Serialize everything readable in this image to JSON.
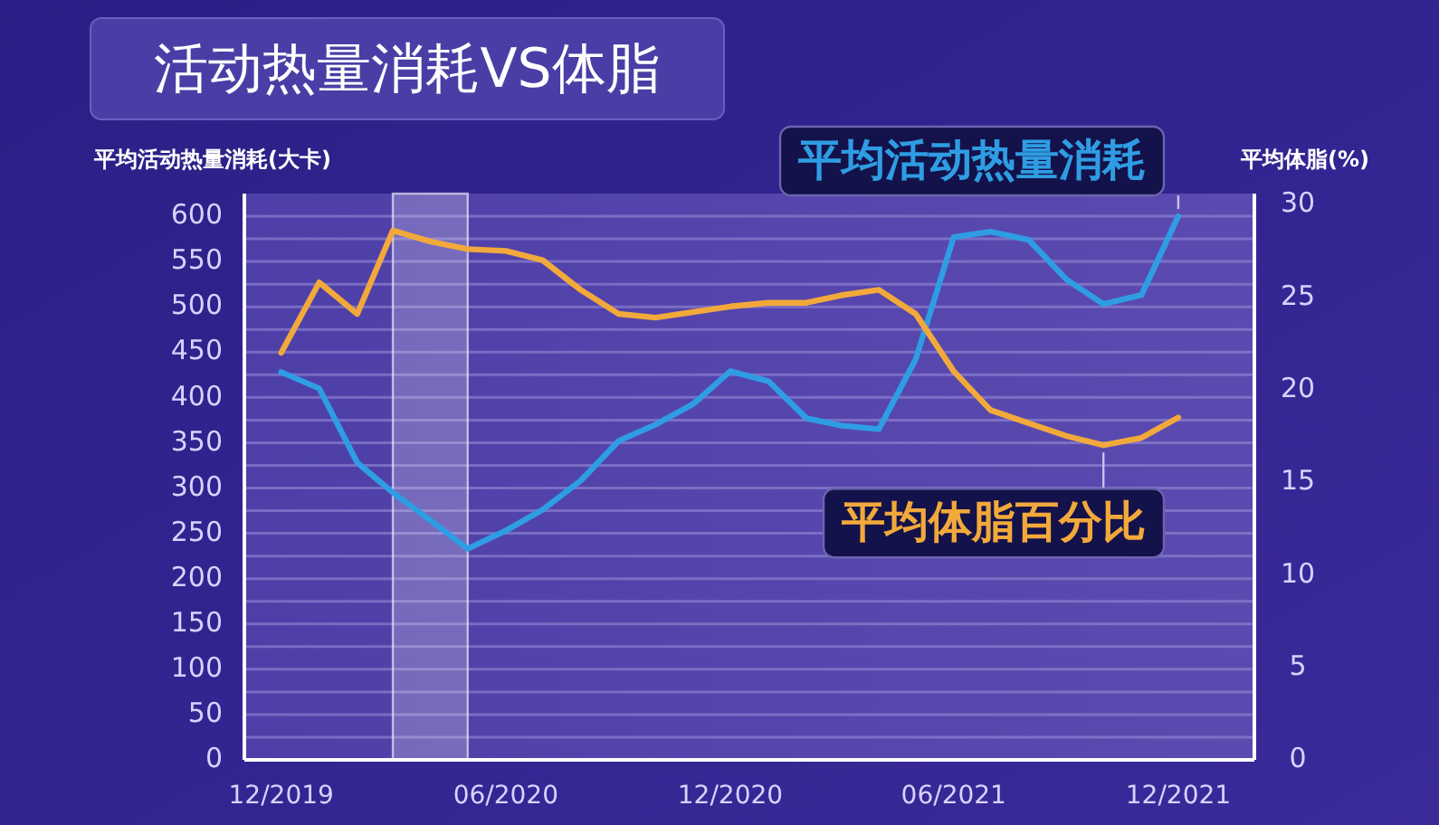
{
  "chart_data": {
    "type": "line",
    "title": "活动热量消耗VS体脂",
    "ylabel": "平均活动热量消耗(大卡)",
    "y2label": "平均体脂(%)",
    "x": [
      "2019-12",
      "2020-01",
      "2020-02",
      "2020-03",
      "2020-04",
      "2020-05",
      "2020-06",
      "2020-07",
      "2020-08",
      "2020-09",
      "2020-10",
      "2020-11",
      "2020-12",
      "2021-01",
      "2021-02",
      "2021-03",
      "2021-04",
      "2021-05",
      "2021-06",
      "2021-07",
      "2021-08",
      "2021-09",
      "2021-10",
      "2021-11",
      "2021-12"
    ],
    "series": [
      {
        "name": "平均活动热量消耗",
        "color": "#2f9de3",
        "values": [
          428,
          410,
          328,
          295,
          264,
          233,
          253,
          276,
          308,
          352,
          370,
          393,
          429,
          418,
          377,
          369,
          365,
          442,
          577,
          583,
          574,
          530,
          503,
          513,
          600
        ]
      },
      {
        "name": "平均体脂百分比",
        "color": "#f2a93b",
        "axis": "y2",
        "values": [
          22.0,
          25.8,
          24.1,
          28.6,
          28.0,
          27.6,
          27.5,
          27.0,
          25.4,
          24.1,
          23.9,
          24.2,
          24.5,
          24.7,
          24.7,
          25.1,
          25.4,
          24.1,
          21.0,
          18.9,
          18.2,
          17.5,
          17.0,
          17.4,
          18.5
        ]
      }
    ],
    "xlim": [
      "2019-11-01",
      "2022-02-01"
    ],
    "xticks": [
      {
        "value": "2019-12",
        "label": "12/2019"
      },
      {
        "value": "2020-06",
        "label": "06/2020"
      },
      {
        "value": "2020-12",
        "label": "12/2020"
      },
      {
        "value": "2021-06",
        "label": "06/2021"
      },
      {
        "value": "2021-12",
        "label": "12/2021"
      }
    ],
    "ylim": [
      0,
      625
    ],
    "yticks": [
      0,
      {
        "value": 25,
        "label": null
      },
      50,
      {
        "value": 75,
        "label": null
      },
      100,
      {
        "value": 125,
        "label": null
      },
      150,
      {
        "value": 175,
        "label": null
      },
      200,
      {
        "value": 225,
        "label": null
      },
      250,
      {
        "value": 275,
        "label": null
      },
      300,
      {
        "value": 325,
        "label": null
      },
      350,
      {
        "value": 375,
        "label": null
      },
      400,
      {
        "value": 425,
        "label": null
      },
      450,
      {
        "value": 475,
        "label": null
      },
      500,
      {
        "value": 525,
        "label": null
      },
      550,
      {
        "value": 575,
        "label": null
      },
      600
    ],
    "y2lim": [
      0,
      30.6
    ],
    "y2ticks": [
      0,
      5,
      10,
      15,
      20,
      25,
      30
    ],
    "bands": [
      {
        "axis": "x",
        "from": "2020-03",
        "to": "2020-05",
        "color": "#ffffff"
      }
    ],
    "grid": "y",
    "legend": false,
    "marker": "none",
    "line_style": "solid"
  }
}
